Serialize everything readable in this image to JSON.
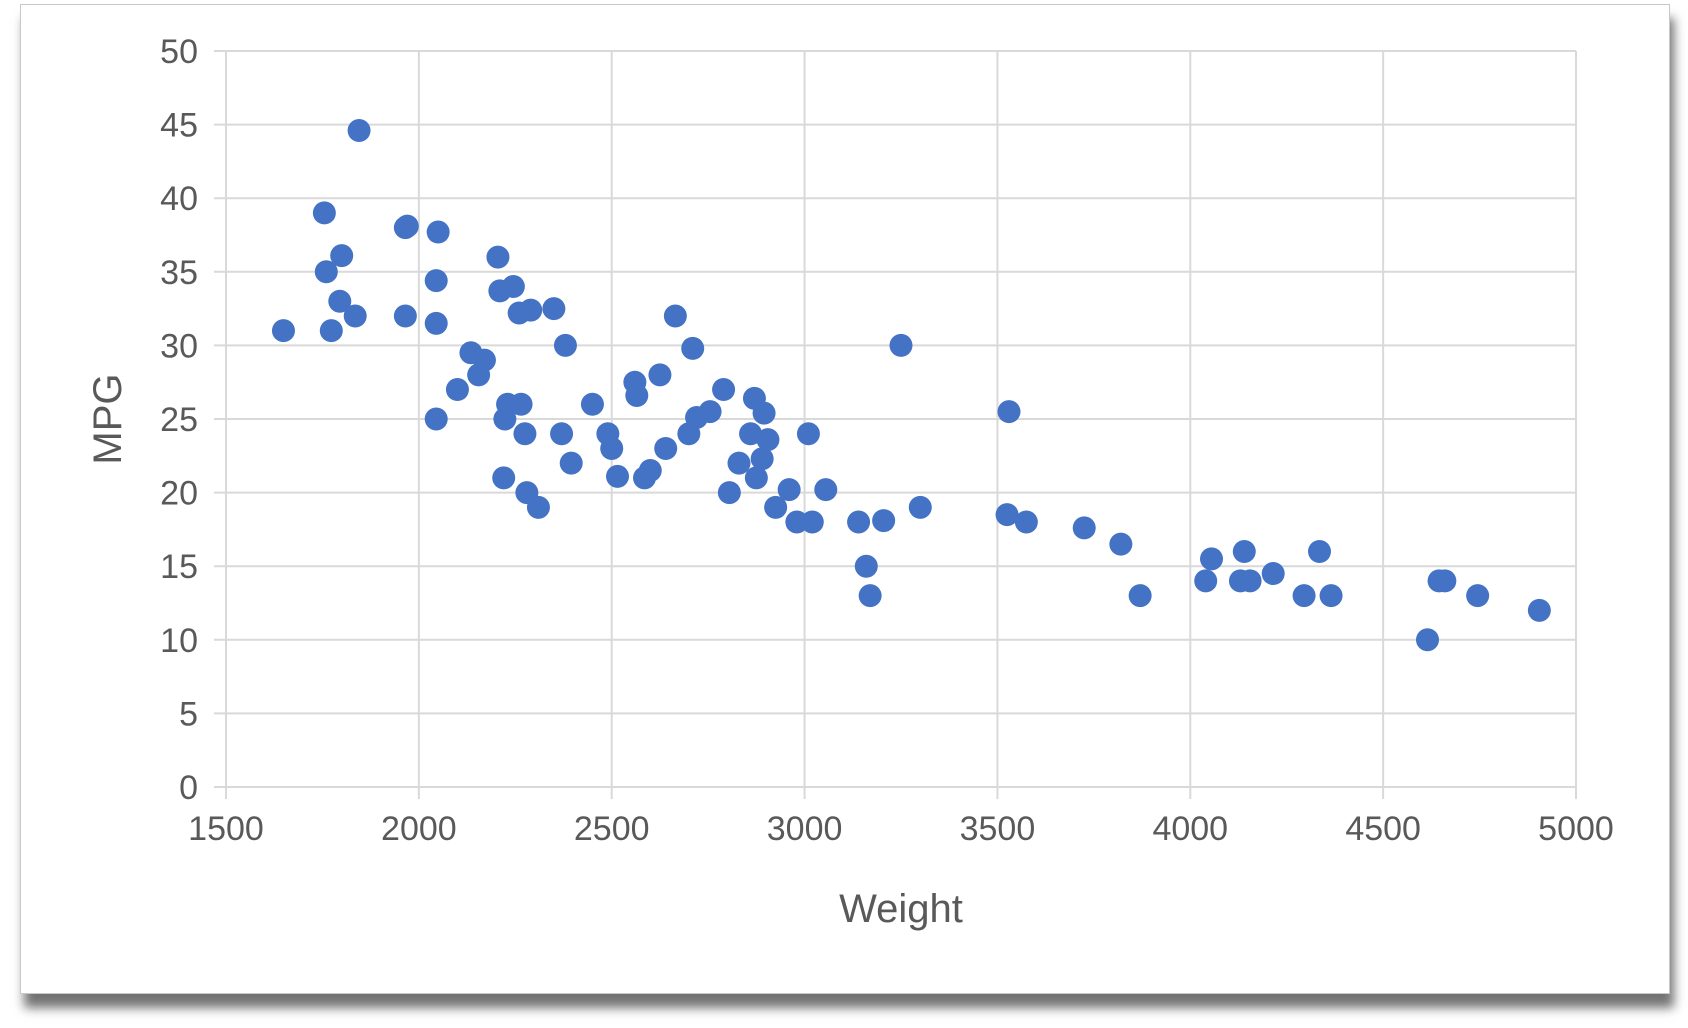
{
  "chart_data": {
    "type": "scatter",
    "xlabel": "Weight",
    "ylabel": "MPG",
    "xlim": [
      1500,
      5000
    ],
    "ylim": [
      0,
      50
    ],
    "x_ticks": [
      1500,
      2000,
      2500,
      3000,
      3500,
      4000,
      4500,
      5000
    ],
    "y_ticks": [
      0,
      5,
      10,
      15,
      20,
      25,
      30,
      35,
      40,
      45,
      50
    ],
    "grid": true,
    "legend": "none",
    "marker_color": "#4472C4",
    "points": [
      [
        1649,
        31
      ],
      [
        1755,
        39
      ],
      [
        1760,
        35
      ],
      [
        1773,
        31
      ],
      [
        1795,
        33
      ],
      [
        1800,
        36.1
      ],
      [
        1835,
        32
      ],
      [
        1845,
        44.6
      ],
      [
        1965,
        32
      ],
      [
        1965,
        38
      ],
      [
        1970,
        38.1
      ],
      [
        2045,
        34.4
      ],
      [
        2045,
        31.5
      ],
      [
        2045,
        25
      ],
      [
        2050,
        37.7
      ],
      [
        2100,
        27
      ],
      [
        2135,
        29.5
      ],
      [
        2155,
        28
      ],
      [
        2170,
        29
      ],
      [
        2205,
        36
      ],
      [
        2210,
        33.7
      ],
      [
        2220,
        21
      ],
      [
        2223,
        25
      ],
      [
        2230,
        26
      ],
      [
        2245,
        34
      ],
      [
        2260,
        32.2
      ],
      [
        2265,
        26
      ],
      [
        2275,
        24
      ],
      [
        2280,
        20
      ],
      [
        2290,
        32.4
      ],
      [
        2310,
        19
      ],
      [
        2350,
        32.5
      ],
      [
        2370,
        24
      ],
      [
        2380,
        30
      ],
      [
        2395,
        22
      ],
      [
        2450,
        26
      ],
      [
        2490,
        24
      ],
      [
        2500,
        23
      ],
      [
        2515,
        21.1
      ],
      [
        2560,
        27.5
      ],
      [
        2565,
        26.6
      ],
      [
        2585,
        21
      ],
      [
        2600,
        21.5
      ],
      [
        2625,
        28
      ],
      [
        2640,
        23
      ],
      [
        2665,
        32
      ],
      [
        2700,
        24
      ],
      [
        2710,
        29.8
      ],
      [
        2720,
        25.1
      ],
      [
        2755,
        25.5
      ],
      [
        2790,
        27
      ],
      [
        2805,
        20
      ],
      [
        2830,
        22
      ],
      [
        2860,
        24
      ],
      [
        2870,
        26.4
      ],
      [
        2875,
        21
      ],
      [
        2890,
        22.3
      ],
      [
        2895,
        25.4
      ],
      [
        2905,
        23.6
      ],
      [
        2925,
        19
      ],
      [
        2960,
        20.2
      ],
      [
        2980,
        18
      ],
      [
        3010,
        24
      ],
      [
        3020,
        18
      ],
      [
        3055,
        20.2
      ],
      [
        3140,
        18
      ],
      [
        3160,
        15
      ],
      [
        3170,
        13
      ],
      [
        3205,
        18.1
      ],
      [
        3250,
        30
      ],
      [
        3300,
        19
      ],
      [
        3525,
        18.5
      ],
      [
        3530,
        25.5
      ],
      [
        3575,
        18
      ],
      [
        3725,
        17.6
      ],
      [
        3820,
        16.5
      ],
      [
        3870,
        13
      ],
      [
        4040,
        14
      ],
      [
        4055,
        15.5
      ],
      [
        4130,
        14
      ],
      [
        4140,
        16
      ],
      [
        4155,
        14
      ],
      [
        4215,
        14.5
      ],
      [
        4295,
        13
      ],
      [
        4335,
        16
      ],
      [
        4365,
        13
      ],
      [
        4615,
        10
      ],
      [
        4645,
        14
      ],
      [
        4660,
        14
      ],
      [
        4745,
        13
      ],
      [
        4905,
        12
      ]
    ]
  }
}
